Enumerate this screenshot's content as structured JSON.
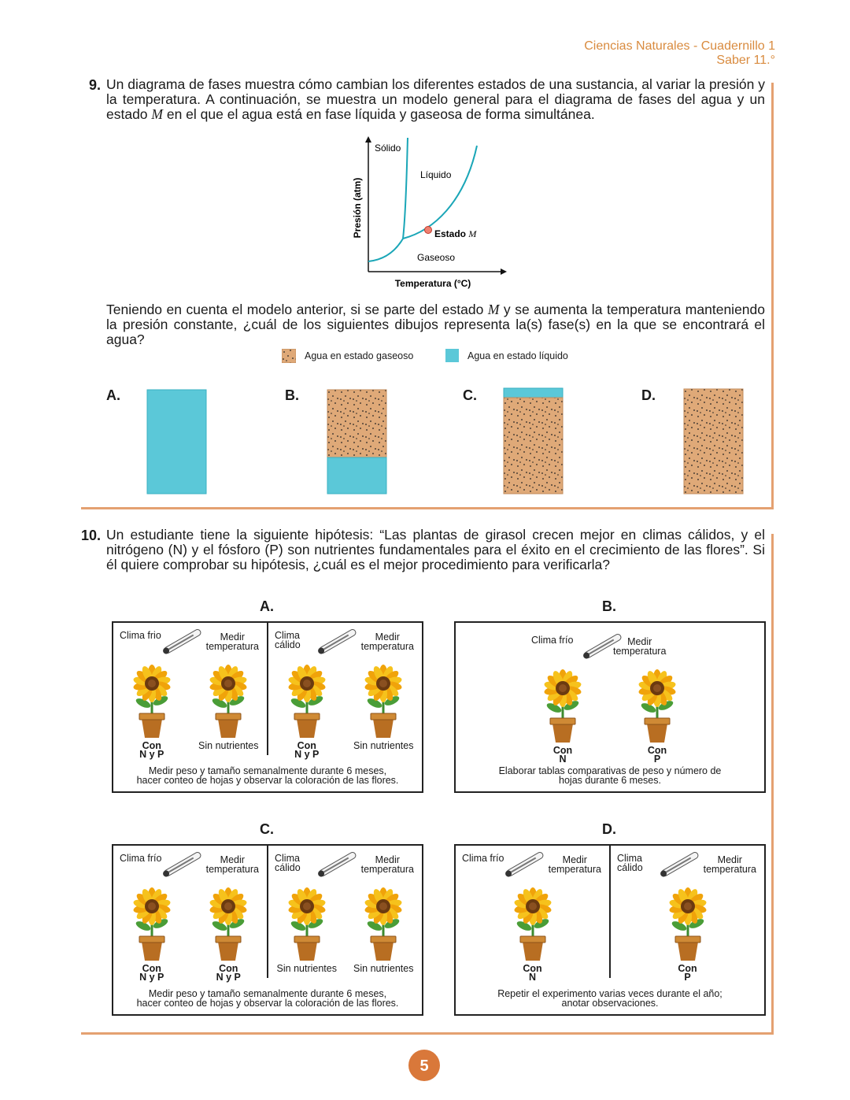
{
  "header": {
    "subject": "Ciencias Naturales - Cuadernillo 1",
    "level": "Saber 11.°"
  },
  "question_9": {
    "number": "9.",
    "intro": [
      "Un diagrama de fases muestra cómo cambian los diferentes estados de una sustancia, al variar la presión y la temperatura. A continuación, se muestra un modelo general para el diagrama de fases del agua y un estado ",
      "M",
      " en el que el agua está en fase líquida y gaseosa de forma simultánea."
    ],
    "diagram": {
      "y_axis": "Presión (atm)",
      "x_axis": "Temperatura (°C)",
      "solid": "Sólido",
      "liquid": "Líquido",
      "gas": "Gaseoso",
      "point_label": [
        "Estado",
        "M"
      ]
    },
    "question": [
      "Teniendo en cuenta el modelo anterior, si se parte del estado ",
      "M",
      " y se aumenta la temperatura manteniendo la presión constante, ¿cuál de los siguientes dibujos representa la(s) fase(s) en la que se encontrará el agua?"
    ],
    "legend": [
      "Agua en estado gaseoso",
      "Agua en estado líquido"
    ],
    "options": [
      "A.",
      "B.",
      "C.",
      "D."
    ]
  },
  "question_10": {
    "number": "10.",
    "text": "Un estudiante tiene la siguiente hipótesis: “Las plantas de girasol crecen mejor en climas cálidos, y el nitrógeno (N) y el fósforo (P) son nutrientes fundamentales para el éxito en el crecimiento de las flores”. Si él quiere comprobar su hipótesis, ¿cuál es el mejor procedimiento para verificarla?",
    "options": [
      {
        "label": "A.",
        "panels": [
          {
            "climate": [
              "Clima frio"
            ],
            "measure": [
              "Medir",
              "temperatura"
            ],
            "plants": [
              [
                "Con",
                "N y P"
              ],
              [
                "Sin nutrientes"
              ]
            ]
          },
          {
            "climate": [
              "Clima",
              "cálido"
            ],
            "measure": [
              "Medir",
              "temperatura"
            ],
            "plants": [
              [
                "Con",
                "N y P"
              ],
              [
                "Sin nutrientes"
              ]
            ]
          }
        ],
        "footer": [
          "Medir peso y tamaño semanalmente durante 6 meses,",
          "hacer conteo de hojas y observar la coloración de las flores."
        ]
      },
      {
        "label": "B.",
        "panels": [
          {
            "climate": [
              "Clima frío"
            ],
            "measure": [
              "Medir",
              "temperatura"
            ],
            "plants": [
              [
                "Con",
                "N"
              ],
              [
                "Con",
                "P"
              ]
            ]
          }
        ],
        "footer": [
          "Elaborar tablas comparativas de peso y número de",
          "hojas durante 6 meses."
        ]
      },
      {
        "label": "C.",
        "panels": [
          {
            "climate": [
              "Clima frío"
            ],
            "measure": [
              "Medir",
              "temperatura"
            ],
            "plants": [
              [
                "Con",
                "N y P"
              ],
              [
                "Con",
                "N y P"
              ]
            ]
          },
          {
            "climate": [
              "Clima",
              "cálido"
            ],
            "measure": [
              "Medir",
              "temperatura"
            ],
            "plants": [
              [
                "Sin nutrientes"
              ],
              [
                "Sin nutrientes"
              ]
            ]
          }
        ],
        "footer": [
          "Medir peso y tamaño semanalmente durante 6 meses,",
          "hacer conteo de hojas y observar la coloración de las flores."
        ]
      },
      {
        "label": "D.",
        "panels": [
          {
            "climate": [
              "Clima frío"
            ],
            "measure": [
              "Medir",
              "temperatura"
            ],
            "plants": [
              [
                "Con",
                "N"
              ]
            ]
          },
          {
            "climate": [
              "Clima",
              "cálido"
            ],
            "measure": [
              "Medir",
              "temperatura"
            ],
            "plants": [
              [
                "Con",
                "P"
              ]
            ]
          }
        ],
        "footer": [
          "Repetir el experimento varias veces durante el año;",
          "anotar observaciones."
        ]
      }
    ]
  },
  "page_number": "5"
}
